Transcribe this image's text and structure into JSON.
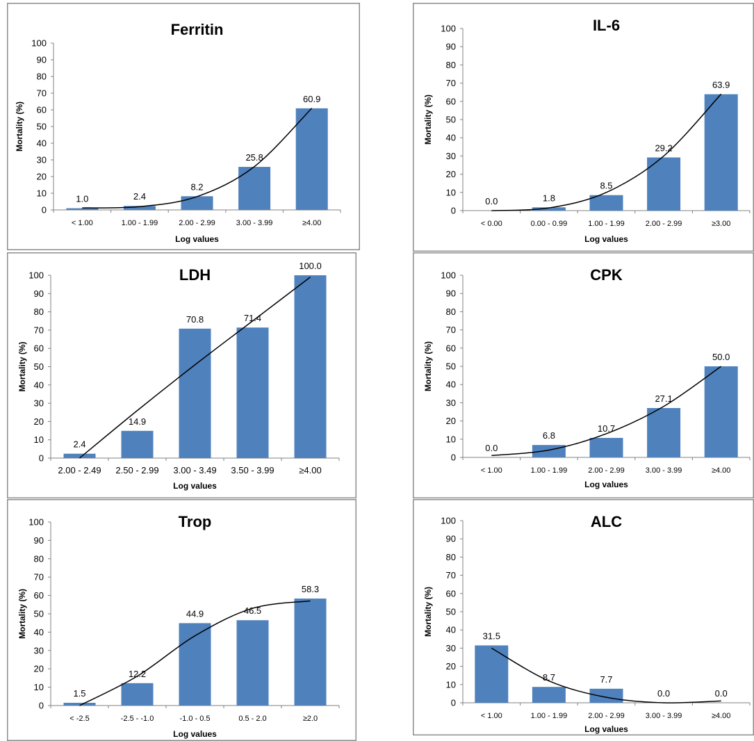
{
  "chart_data": [
    {
      "type": "bar",
      "title": "Ferritin",
      "xlabel": "Log values",
      "ylabel": "Mortality (%)",
      "categories": [
        "< 1.00",
        "1.00 - 1.99",
        "2.00 - 2.99",
        "3.00 - 3.99",
        "≥4.00"
      ],
      "values": [
        1.0,
        2.4,
        8.2,
        25.8,
        60.9
      ],
      "labels": [
        "1.0",
        "2.4",
        "8.2",
        "25.8",
        "60.9"
      ],
      "trend": [
        1.2,
        2.0,
        8.0,
        26.0,
        61.0
      ],
      "ylim": [
        0,
        100
      ],
      "yticks": [
        "0",
        "10",
        "20",
        "30",
        "40",
        "50",
        "60",
        "70",
        "80",
        "90",
        "100"
      ],
      "grid": false,
      "legend": "none"
    },
    {
      "type": "bar",
      "title": "IL-6",
      "xlabel": "Log values",
      "ylabel": "Mortality (%)",
      "categories": [
        "< 0.00",
        "0.00 - 0.99",
        "1.00 - 1.99",
        "2.00 - 2.99",
        "≥3.00"
      ],
      "values": [
        0.0,
        1.8,
        8.5,
        29.2,
        63.9
      ],
      "labels": [
        "0.0",
        "1.8",
        "8.5",
        "29.2",
        "63.9"
      ],
      "trend": [
        0.0,
        1.5,
        10.0,
        30.0,
        64.0
      ],
      "ylim": [
        0,
        100
      ],
      "yticks": [
        "0",
        "10",
        "20",
        "30",
        "40",
        "50",
        "60",
        "70",
        "80",
        "90",
        "100"
      ],
      "grid": false,
      "legend": "none"
    },
    {
      "type": "bar",
      "title": "LDH",
      "xlabel": "Log values",
      "ylabel": "Mortality (%)",
      "categories": [
        "2.00 - 2.49",
        "2.50 - 2.99",
        "3.00 - 3.49",
        "3.50 - 3.99",
        "≥4.00"
      ],
      "values": [
        2.4,
        14.9,
        70.8,
        71.4,
        100.0
      ],
      "labels": [
        "2.4",
        "14.9",
        "70.8",
        "71.4",
        "100.0"
      ],
      "trend": [
        0.0,
        26.0,
        51.0,
        75.0,
        99.0
      ],
      "ylim": [
        0,
        100
      ],
      "yticks": [
        "0",
        "10",
        "20",
        "30",
        "40",
        "50",
        "60",
        "70",
        "80",
        "90",
        "100"
      ],
      "grid": false,
      "legend": "none"
    },
    {
      "type": "bar",
      "title": "CPK",
      "xlabel": "Log values",
      "ylabel": "Mortality (%)",
      "categories": [
        "< 1.00",
        "1.00 - 1.99",
        "2.00 - 2.99",
        "3.00 - 3.99",
        "≥4.00"
      ],
      "values": [
        0.0,
        6.8,
        10.7,
        27.1,
        50.0
      ],
      "labels": [
        "0.0",
        "6.8",
        "10.7",
        "27.1",
        "50.0"
      ],
      "trend": [
        1.0,
        4.0,
        13.0,
        28.0,
        50.0
      ],
      "ylim": [
        0,
        100
      ],
      "yticks": [
        "0",
        "10",
        "20",
        "30",
        "40",
        "50",
        "60",
        "70",
        "80",
        "90",
        "100"
      ],
      "grid": false,
      "legend": "none"
    },
    {
      "type": "bar",
      "title": "Trop",
      "xlabel": "Log values",
      "ylabel": "Mortality (%)",
      "categories": [
        "< -2.5",
        "-2.5 - -1.0",
        "-1.0 - 0.5",
        "0.5 - 2.0",
        "≥2.0"
      ],
      "values": [
        1.5,
        12.2,
        44.9,
        46.5,
        58.3
      ],
      "labels": [
        "1.5",
        "12.2",
        "44.9",
        "46.5",
        "58.3"
      ],
      "trend": [
        0.0,
        16.0,
        38.0,
        53.0,
        57.0
      ],
      "ylim": [
        0,
        100
      ],
      "yticks": [
        "0",
        "10",
        "20",
        "30",
        "40",
        "50",
        "60",
        "70",
        "80",
        "90",
        "100"
      ],
      "grid": false,
      "legend": "none"
    },
    {
      "type": "bar",
      "title": "ALC",
      "xlabel": "Log values",
      "ylabel": "Mortality (%)",
      "categories": [
        "< 1.00",
        "1.00 - 1.99",
        "2.00 - 2.99",
        "3.00 - 3.99",
        "≥4.00"
      ],
      "values": [
        31.5,
        8.7,
        7.7,
        0.0,
        0.0
      ],
      "labels": [
        "31.5",
        "8.7",
        "7.7",
        "0.0",
        "0.0"
      ],
      "trend": [
        30.0,
        12.0,
        3.0,
        0.0,
        1.0
      ],
      "ylim": [
        0,
        100
      ],
      "yticks": [
        "0",
        "10",
        "20",
        "30",
        "40",
        "50",
        "60",
        "70",
        "80",
        "90",
        "100"
      ],
      "grid": false,
      "legend": "none"
    }
  ],
  "colors": {
    "bar": "#4f81bd",
    "trend": "#000000"
  }
}
